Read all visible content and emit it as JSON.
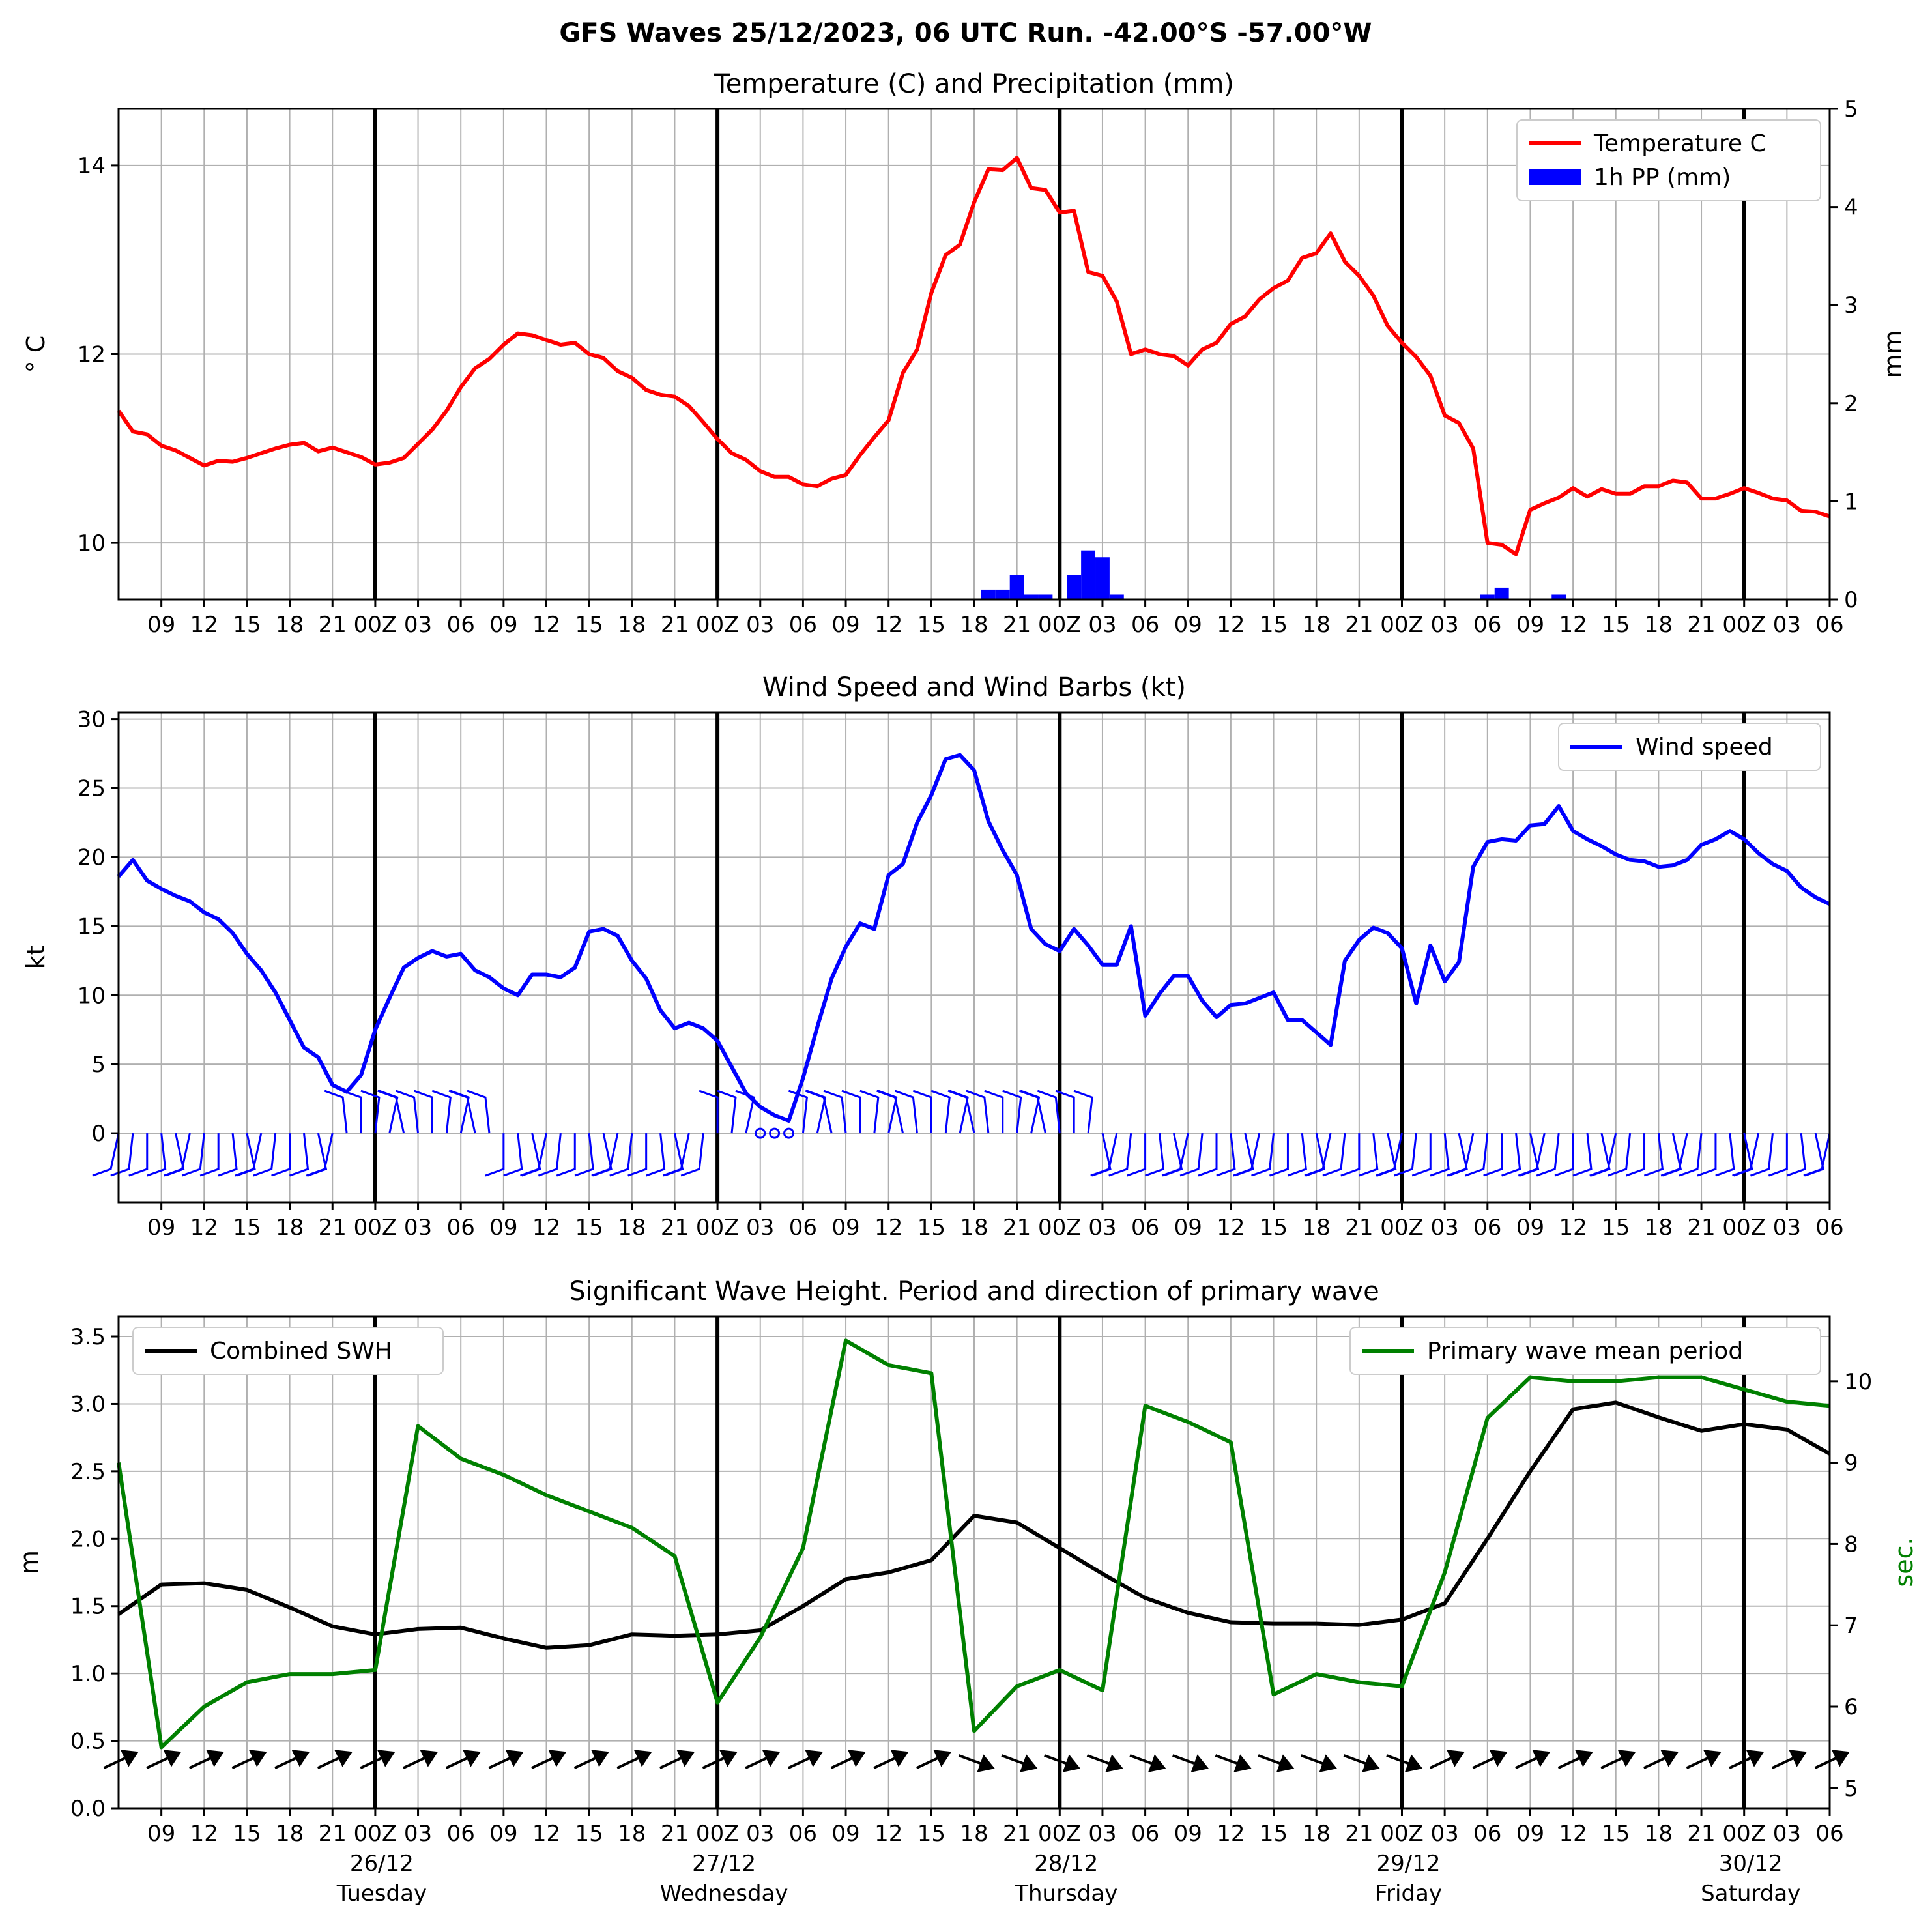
{
  "suptitle": "GFS Waves 25/12/2023, 06 UTC Run. -42.00°S -57.00°W",
  "x_tick_labels": [
    "09",
    "12",
    "15",
    "18",
    "21",
    "00Z",
    "03",
    "06",
    "09",
    "12",
    "15",
    "18",
    "21",
    "00Z",
    "03",
    "06",
    "09",
    "12",
    "15",
    "18",
    "21",
    "00Z",
    "03",
    "06",
    "09",
    "12",
    "15",
    "18",
    "21",
    "00Z",
    "03",
    "06",
    "09",
    "12",
    "15",
    "18",
    "21",
    "00Z",
    "03",
    "06"
  ],
  "day_labels": [
    {
      "date": "26/12",
      "day": "Tuesday"
    },
    {
      "date": "27/12",
      "day": "Wednesday"
    },
    {
      "date": "28/12",
      "day": "Thursday"
    },
    {
      "date": "29/12",
      "day": "Friday"
    },
    {
      "date": "30/12",
      "day": "Saturday"
    }
  ],
  "colors": {
    "temperature": "#ff0000",
    "precip": "#0000ff",
    "wind": "#0000ff",
    "swh": "#000000",
    "period": "#008000",
    "grid": "#b0b0b0",
    "day_line": "#000000"
  },
  "chart_data": [
    {
      "type": "line",
      "title": "Temperature (C) and Precipitation (mm)",
      "ylabel": "° C",
      "ylabel_right": "mm",
      "x_hours_from_run_start": [
        0,
        1,
        2,
        3,
        4,
        5,
        6,
        7,
        8,
        9,
        10,
        11,
        12,
        13,
        14,
        15,
        16,
        17,
        18,
        19,
        20,
        21,
        22,
        23,
        24,
        25,
        26,
        27,
        28,
        29,
        30,
        31,
        32,
        33,
        34,
        35,
        36,
        37,
        38,
        39,
        40,
        41,
        42,
        43,
        44,
        45,
        46,
        47,
        48,
        49,
        50,
        51,
        52,
        53,
        54,
        55,
        56,
        57,
        58,
        59,
        60,
        61,
        62,
        63,
        64,
        65,
        66,
        67,
        68,
        69,
        70,
        71,
        72,
        73,
        74,
        75,
        76,
        77,
        78,
        79,
        80,
        81,
        82,
        83,
        84,
        85,
        86,
        87,
        88,
        89,
        90,
        91,
        92,
        93,
        94,
        95,
        96,
        97,
        98,
        99,
        100,
        101,
        102,
        103,
        104,
        105,
        106,
        107,
        108,
        109,
        110,
        111,
        112,
        113,
        114,
        115,
        116,
        117,
        118,
        119,
        120
      ],
      "ylim": [
        9.4,
        14.6
      ],
      "ylim_right": [
        0,
        5
      ],
      "yticks": [
        10,
        12,
        14
      ],
      "yticks_right": [
        0,
        1,
        2,
        3,
        4,
        5
      ],
      "series": [
        {
          "name": "Temperature C",
          "values": [
            11.4,
            11.18,
            11.15,
            11.03,
            10.98,
            10.9,
            10.82,
            10.87,
            10.86,
            10.9,
            10.95,
            11.0,
            11.04,
            11.06,
            10.97,
            11.01,
            10.96,
            10.91,
            10.83,
            10.85,
            10.9,
            11.05,
            11.2,
            11.4,
            11.65,
            11.85,
            11.95,
            12.1,
            12.22,
            12.2,
            12.15,
            12.1,
            12.12,
            12.0,
            11.96,
            11.82,
            11.75,
            11.62,
            11.57,
            11.55,
            11.45,
            11.28,
            11.1,
            10.95,
            10.88,
            10.76,
            10.7,
            10.7,
            10.62,
            10.6,
            10.68,
            10.72,
            10.93,
            11.12,
            11.3,
            11.8,
            12.05,
            12.65,
            13.05,
            13.16,
            13.61,
            13.96,
            13.95,
            14.08,
            13.76,
            13.74,
            13.5,
            13.52,
            12.87,
            12.83,
            12.56,
            12.0,
            12.05,
            12.0,
            11.98,
            11.88,
            12.05,
            12.12,
            12.32,
            12.4,
            12.58,
            12.7,
            12.78,
            13.02,
            13.07,
            13.28,
            12.98,
            12.83,
            12.62,
            12.3,
            12.12,
            11.97,
            11.77,
            11.35,
            11.27,
            11.0,
            10.0,
            9.98,
            9.88,
            10.35,
            10.42,
            10.48,
            10.58,
            10.49,
            10.57,
            10.52,
            10.52,
            10.6,
            10.6,
            10.66,
            10.64,
            10.47,
            10.47,
            10.52,
            10.58,
            10.53,
            10.47,
            10.45,
            10.34,
            10.33,
            10.28
          ]
        },
        {
          "name": "1h PP (mm)",
          "type": "bar",
          "bars": [
            {
              "x": 61,
              "value": 0.1
            },
            {
              "x": 62,
              "value": 0.1
            },
            {
              "x": 63,
              "value": 0.25
            },
            {
              "x": 64,
              "value": 0.05
            },
            {
              "x": 65,
              "value": 0.05
            },
            {
              "x": 67,
              "value": 0.25
            },
            {
              "x": 68,
              "value": 0.5
            },
            {
              "x": 69,
              "value": 0.43
            },
            {
              "x": 70,
              "value": 0.05
            },
            {
              "x": 96,
              "value": 0.05
            },
            {
              "x": 97,
              "value": 0.12
            },
            {
              "x": 101,
              "value": 0.05
            }
          ]
        }
      ]
    },
    {
      "type": "line",
      "title": "Wind Speed and Wind Barbs (kt)",
      "ylabel": "kt",
      "ylim": [
        -5,
        30.5
      ],
      "yticks": [
        0,
        5,
        10,
        15,
        20,
        25,
        30
      ],
      "x_hours_from_run_start": [
        0,
        1,
        2,
        3,
        4,
        5,
        6,
        7,
        8,
        9,
        10,
        11,
        12,
        13,
        14,
        15,
        16,
        17,
        18,
        19,
        20,
        21,
        22,
        23,
        24,
        25,
        26,
        27,
        28,
        29,
        30,
        31,
        32,
        33,
        34,
        35,
        36,
        37,
        38,
        39,
        40,
        41,
        42,
        43,
        44,
        45,
        46,
        47,
        48,
        49,
        50,
        51,
        52,
        53,
        54,
        55,
        56,
        57,
        58,
        59,
        60,
        61,
        62,
        63,
        64,
        65,
        66,
        67,
        68,
        69,
        70,
        71,
        72,
        73,
        74,
        75,
        76,
        77,
        78,
        79,
        80,
        81,
        82,
        83,
        84,
        85,
        86,
        87,
        88,
        89,
        90,
        91,
        92,
        93,
        94,
        95,
        96,
        97,
        98,
        99,
        100,
        101,
        102,
        103,
        104,
        105,
        106,
        107,
        108,
        109,
        110,
        111,
        112,
        113,
        114,
        115,
        116,
        117,
        118,
        119,
        120
      ],
      "series": [
        {
          "name": "Wind speed",
          "values": [
            18.6,
            19.8,
            18.3,
            17.7,
            17.2,
            16.8,
            16.0,
            15.5,
            14.5,
            13.0,
            11.8,
            10.2,
            8.2,
            6.2,
            5.5,
            3.5,
            3.0,
            4.2,
            7.5,
            9.8,
            12.0,
            12.7,
            13.2,
            12.8,
            13.0,
            11.8,
            11.3,
            10.5,
            10.0,
            11.5,
            11.5,
            11.3,
            12.0,
            14.6,
            14.8,
            14.3,
            12.5,
            11.2,
            8.9,
            7.6,
            8.0,
            7.6,
            6.7,
            4.8,
            2.9,
            1.9,
            1.3,
            0.9,
            4.0,
            7.7,
            11.2,
            13.5,
            15.2,
            14.8,
            18.7,
            19.5,
            22.5,
            24.5,
            27.1,
            27.4,
            26.3,
            22.6,
            20.5,
            18.7,
            14.8,
            13.7,
            13.2,
            14.8,
            13.6,
            12.2,
            12.2,
            15.0,
            8.5,
            10.1,
            11.4,
            11.4,
            9.6,
            8.4,
            9.3,
            9.4,
            9.8,
            10.2,
            8.2,
            8.2,
            7.3,
            6.4,
            12.5,
            14.0,
            14.9,
            14.5,
            13.4,
            9.4,
            13.6,
            11.0,
            12.4,
            19.3,
            21.1,
            21.3,
            21.2,
            22.3,
            22.4,
            23.7,
            21.9,
            21.3,
            20.8,
            20.2,
            19.8,
            19.7,
            19.3,
            19.4,
            19.8,
            20.9,
            21.3,
            21.9,
            21.3,
            20.3,
            19.5,
            19.0,
            17.8,
            17.1,
            16.6
          ]
        }
      ],
      "barbs": "wind barbs along y=0"
    },
    {
      "type": "line",
      "title": "Significant Wave Height. Period and direction of primary wave",
      "ylabel": "m",
      "ylabel_right": "sec.",
      "ylim": [
        0,
        3.65
      ],
      "ylim_right": [
        4.75,
        10.8
      ],
      "yticks": [
        0.0,
        0.5,
        1.0,
        1.5,
        2.0,
        2.5,
        3.0,
        3.5
      ],
      "yticks_right": [
        5,
        6,
        7,
        8,
        9,
        10
      ],
      "x_hours_from_run_start": [
        0,
        3,
        6,
        9,
        12,
        15,
        18,
        21,
        24,
        27,
        30,
        33,
        36,
        39,
        42,
        45,
        48,
        51,
        54,
        57,
        60,
        63,
        66,
        69,
        72,
        75,
        78,
        81,
        84,
        87,
        90,
        93,
        96,
        99,
        102,
        105,
        108,
        111,
        114,
        117,
        120
      ],
      "series": [
        {
          "name": "Combined SWH",
          "axis": "left",
          "values": [
            1.44,
            1.66,
            1.67,
            1.62,
            1.49,
            1.35,
            1.29,
            1.33,
            1.34,
            1.26,
            1.19,
            1.21,
            1.29,
            1.28,
            1.29,
            1.32,
            1.5,
            1.7,
            1.75,
            1.84,
            2.17,
            2.12,
            1.93,
            1.74,
            1.56,
            1.45,
            1.38,
            1.37,
            1.37,
            1.36,
            1.4,
            1.52,
            2.0,
            2.5,
            2.96,
            3.01,
            2.9,
            2.8,
            2.85,
            2.81,
            2.63
          ]
        },
        {
          "name": "Primary wave mean period",
          "axis": "right",
          "values": [
            9.0,
            5.5,
            6.0,
            6.3,
            6.4,
            6.4,
            6.45,
            9.45,
            9.05,
            8.85,
            8.6,
            8.4,
            8.2,
            7.85,
            6.05,
            6.85,
            7.95,
            10.5,
            10.2,
            10.1,
            5.7,
            6.25,
            6.45,
            6.2,
            9.7,
            9.5,
            9.25,
            6.15,
            6.4,
            6.3,
            6.25,
            7.65,
            9.55,
            10.05,
            10.0,
            10.0,
            10.05,
            10.05,
            9.9,
            9.75,
            9.7
          ]
        }
      ],
      "arrows": "primary wave direction arrows along y≈0.35"
    }
  ]
}
